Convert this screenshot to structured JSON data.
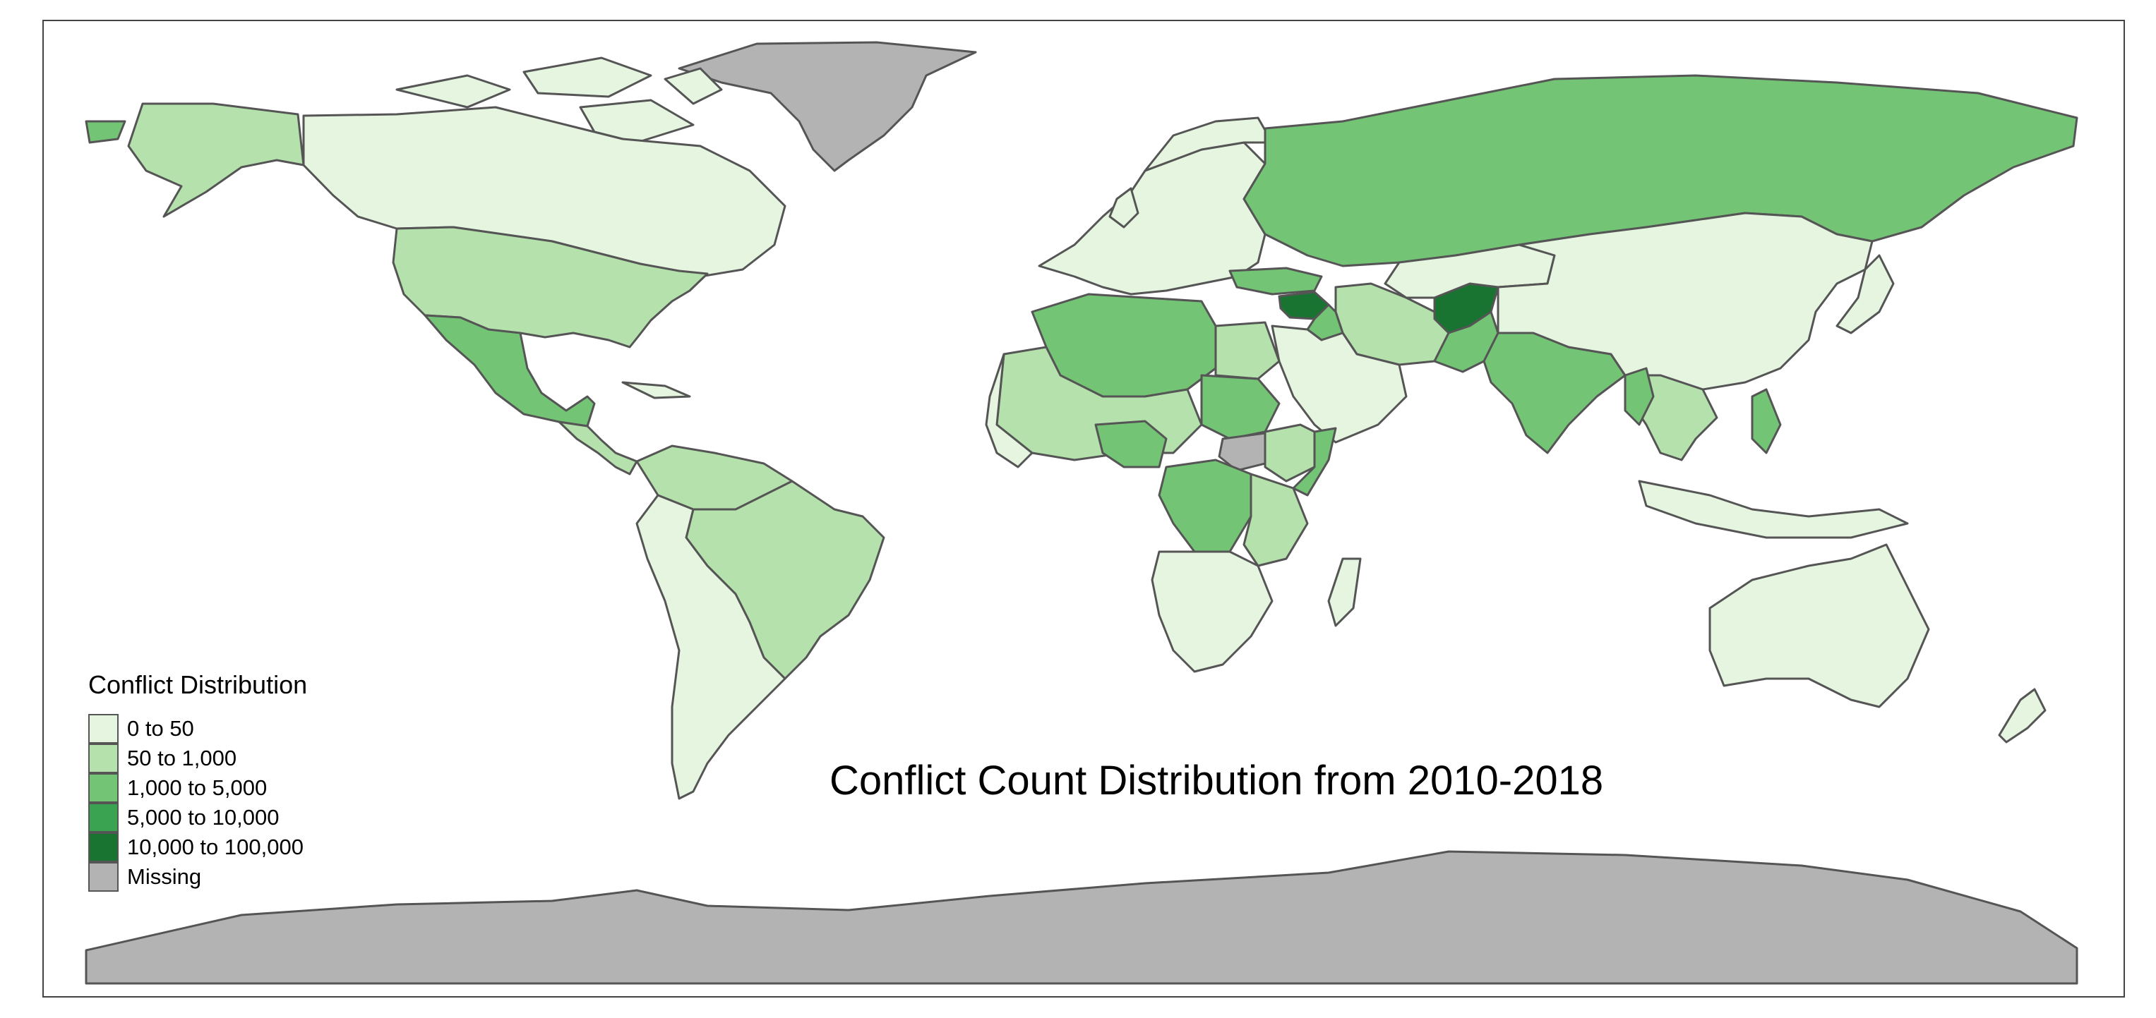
{
  "map": {
    "title": "Conflict Count Distribution from 2010-2018",
    "ocean_color": "#ffffff",
    "border_color": "#555555"
  },
  "legend": {
    "title": "Conflict Distribution",
    "items": [
      {
        "label": "0 to 50",
        "color": "#e5f5e0"
      },
      {
        "label": "50 to 1,000",
        "color": "#b4e1ac"
      },
      {
        "label": "1,000 to 5,000",
        "color": "#74c476"
      },
      {
        "label": "5,000 to 10,000",
        "color": "#3aa351"
      },
      {
        "label": "10,000 to 100,000",
        "color": "#187430"
      },
      {
        "label": "Missing",
        "color": "#b3b3b3"
      }
    ]
  }
}
